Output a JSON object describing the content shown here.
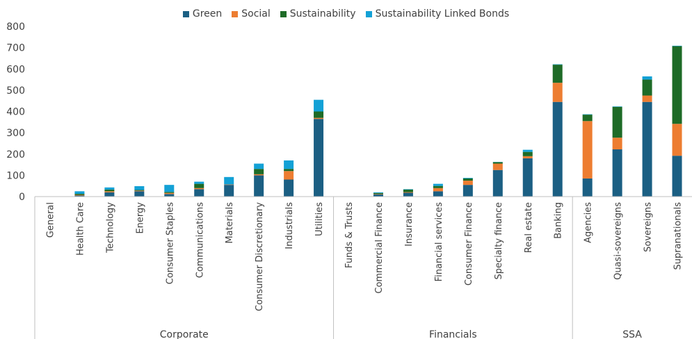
{
  "chart_data": {
    "type": "bar",
    "stacked": true,
    "ylim": [
      0,
      800
    ],
    "yticks": [
      0,
      100,
      200,
      300,
      400,
      500,
      600,
      700,
      800
    ],
    "grid": false,
    "legend_position": "top-center",
    "categories": [
      "General",
      "Health Care",
      "Technology",
      "Energy",
      "Consumer Staples",
      "Communications",
      "Materials",
      "Consumer Discretionary",
      "Industrials",
      "Utilities",
      "Funds & Trusts",
      "Commercial Finance",
      "Insurance",
      "Financial services",
      "Consumer Finance",
      "Specialty finance",
      "Real estate",
      "Banking",
      "Agencies",
      "Quasi-sovereigns",
      "Sovereigns",
      "Supranationals"
    ],
    "groups": [
      {
        "label": "Corporate",
        "start": 0,
        "end": 9
      },
      {
        "label": "Financials",
        "start": 10,
        "end": 17
      },
      {
        "label": "SSA",
        "start": 18,
        "end": 21
      }
    ],
    "series": [
      {
        "name": "Green",
        "color": "#1b5f83",
        "values": [
          0,
          5,
          20,
          25,
          12,
          35,
          55,
          100,
          80,
          365,
          0,
          10,
          18,
          25,
          55,
          125,
          180,
          445,
          85,
          222,
          445,
          192
        ]
      },
      {
        "name": "Social",
        "color": "#ed7d31",
        "values": [
          0,
          3,
          5,
          3,
          5,
          5,
          2,
          5,
          40,
          5,
          0,
          2,
          3,
          15,
          20,
          30,
          10,
          90,
          270,
          55,
          30,
          150
        ]
      },
      {
        "name": "Sustainability",
        "color": "#1e6b27",
        "values": [
          0,
          5,
          8,
          3,
          5,
          20,
          0,
          25,
          10,
          30,
          0,
          5,
          12,
          10,
          10,
          7,
          20,
          85,
          30,
          145,
          75,
          365
        ]
      },
      {
        "name": "Sustainability Linked Bonds",
        "color": "#13a1d6",
        "values": [
          0,
          12,
          10,
          18,
          33,
          10,
          35,
          25,
          40,
          55,
          0,
          3,
          2,
          10,
          3,
          1,
          10,
          2,
          2,
          2,
          15,
          2
        ]
      }
    ]
  }
}
